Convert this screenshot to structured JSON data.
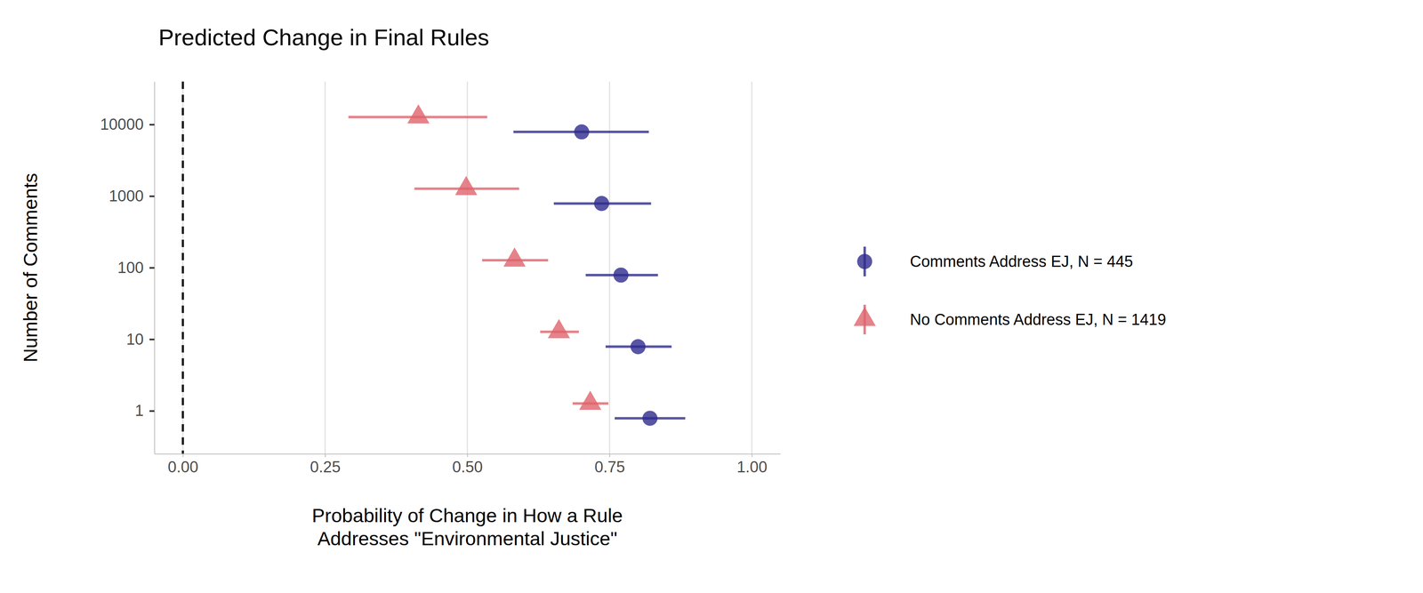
{
  "chart_data": {
    "type": "dot_whisker",
    "title": "Predicted Change in Final Rules",
    "x_label": [
      "Probability of Change in How a Rule",
      "Addresses \"Environmental Justice\""
    ],
    "y_label": "Number of Comments",
    "categories": [
      "1",
      "10",
      "100",
      "1000",
      "10000"
    ],
    "xlim": [
      -0.05,
      1.05
    ],
    "xticks": [
      {
        "value": 0,
        "label": "0.00"
      },
      {
        "value": 0.25,
        "label": "0.25"
      },
      {
        "value": 0.5,
        "label": "0.50"
      },
      {
        "value": 0.75,
        "label": "0.75"
      },
      {
        "value": 1,
        "label": "1.00"
      }
    ],
    "grid": true,
    "legend": "right",
    "orientation": "horizontal",
    "reference_line": {
      "x": 0,
      "line_style": "dashed"
    },
    "series": [
      {
        "name": "Comments Address EJ, N = 445",
        "color": "#2e2b8f",
        "marker": "circle",
        "values": [
          0.821,
          0.8,
          0.77,
          0.736,
          0.701
        ],
        "ci_low": [
          0.759,
          0.743,
          0.708,
          0.652,
          0.581
        ],
        "ci_high": [
          0.883,
          0.859,
          0.835,
          0.823,
          0.819
        ]
      },
      {
        "name": "No Comments Address EJ, N = 1419",
        "color": "#e0636b",
        "marker": "triangle",
        "values": [
          0.716,
          0.661,
          0.583,
          0.498,
          0.414
        ],
        "ci_low": [
          0.685,
          0.628,
          0.526,
          0.407,
          0.291
        ],
        "ci_high": [
          0.748,
          0.696,
          0.642,
          0.591,
          0.535
        ]
      }
    ]
  }
}
